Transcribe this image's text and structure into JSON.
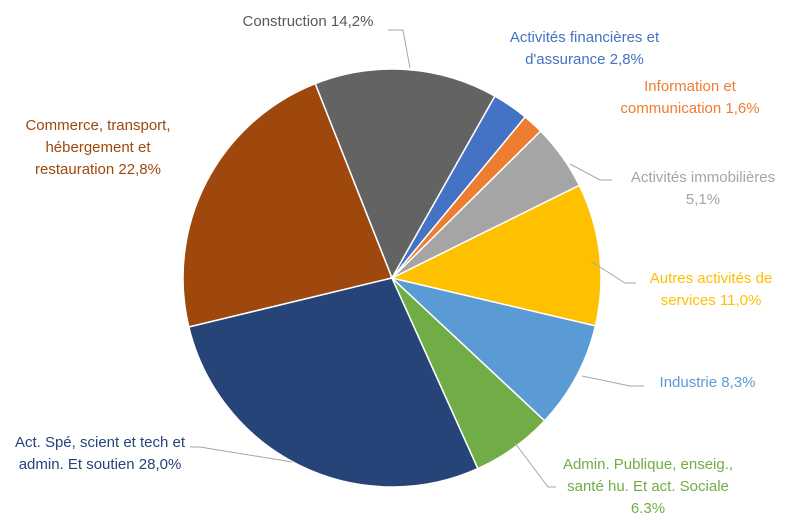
{
  "chart_data": {
    "type": "pie",
    "categories": [
      "Activités financières et d'assurance",
      "Information et communication",
      "Activités immobilières",
      "Autres activités de services",
      "Industrie",
      "Admin. Publique, enseig., santé hu. Et act. Sociale",
      "Act. Spé, scient et tech et admin. Et soutien",
      "Commerce, transport, hébergement et restauration",
      "Construction"
    ],
    "values": [
      2.8,
      1.6,
      5.1,
      11.0,
      8.3,
      6.3,
      28.0,
      22.8,
      14.2
    ],
    "value_labels": [
      "2,8%",
      "1,6%",
      "5,1%",
      "11,0%",
      "8,3%",
      "6.3%",
      "28,0%",
      "22,8%",
      "14,2%"
    ],
    "colors": [
      "#4472c4",
      "#ed7d31",
      "#a5a5a5",
      "#ffc000",
      "#5b9bd5",
      "#70ad47",
      "#264478",
      "#9e480e",
      "#636363"
    ],
    "label_colors": [
      "#4472c4",
      "#ed7d31",
      "#a5a5a5",
      "#ffc000",
      "#5b9bd5",
      "#70ad47",
      "#264478",
      "#9e480e",
      "#595959"
    ]
  }
}
